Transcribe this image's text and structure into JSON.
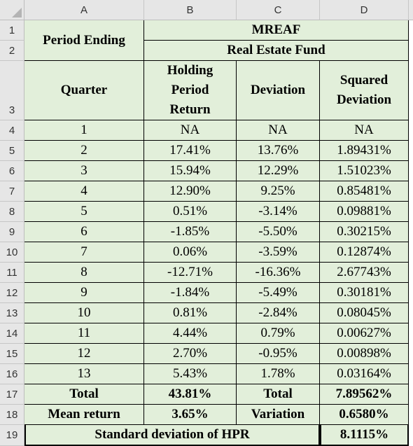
{
  "columns": [
    "A",
    "B",
    "C",
    "D"
  ],
  "row_numbers": [
    "1",
    "2",
    "3",
    "4",
    "5",
    "6",
    "7",
    "8",
    "9",
    "10",
    "11",
    "12",
    "13",
    "14",
    "15",
    "16",
    "17",
    "18",
    "19"
  ],
  "header": {
    "period_ending": "Period Ending",
    "mreaf": "MREAF",
    "real_estate_fund": "Real Estate Fund",
    "quarter": "Quarter",
    "holding_period_return": "Holding Period Return",
    "deviation": "Deviation",
    "squared_deviation": "Squared Deviation"
  },
  "rows": [
    {
      "quarter": "1",
      "hpr": "NA",
      "deviation": "NA",
      "squared": "NA"
    },
    {
      "quarter": "2",
      "hpr": "17.41%",
      "deviation": "13.76%",
      "squared": "1.89431%"
    },
    {
      "quarter": "3",
      "hpr": "15.94%",
      "deviation": "12.29%",
      "squared": "1.51023%"
    },
    {
      "quarter": "4",
      "hpr": "12.90%",
      "deviation": "9.25%",
      "squared": "0.85481%"
    },
    {
      "quarter": "5",
      "hpr": "0.51%",
      "deviation": "-3.14%",
      "squared": "0.09881%"
    },
    {
      "quarter": "6",
      "hpr": "-1.85%",
      "deviation": "-5.50%",
      "squared": "0.30215%"
    },
    {
      "quarter": "7",
      "hpr": "0.06%",
      "deviation": "-3.59%",
      "squared": "0.12874%"
    },
    {
      "quarter": "8",
      "hpr": "-12.71%",
      "deviation": "-16.36%",
      "squared": "2.67743%"
    },
    {
      "quarter": "9",
      "hpr": "-1.84%",
      "deviation": "-5.49%",
      "squared": "0.30181%"
    },
    {
      "quarter": "10",
      "hpr": "0.81%",
      "deviation": "-2.84%",
      "squared": "0.08045%"
    },
    {
      "quarter": "11",
      "hpr": "4.44%",
      "deviation": "0.79%",
      "squared": "0.00627%"
    },
    {
      "quarter": "12",
      "hpr": "2.70%",
      "deviation": "-0.95%",
      "squared": "0.00898%"
    },
    {
      "quarter": "13",
      "hpr": "5.43%",
      "deviation": "1.78%",
      "squared": "0.03164%"
    }
  ],
  "totals": {
    "label": "Total",
    "hpr": "43.81%",
    "label2": "Total",
    "squared": "7.89562%"
  },
  "mean": {
    "label": "Mean return",
    "hpr": "3.65%",
    "label2": "Variation",
    "squared": "0.6580%"
  },
  "stddev": {
    "label": "Standard deviation of HPR",
    "value": "8.1115%"
  },
  "colors": {
    "cell_fill": "#e2efda",
    "header_fill": "#e6e6e6",
    "grid": "#000000"
  }
}
